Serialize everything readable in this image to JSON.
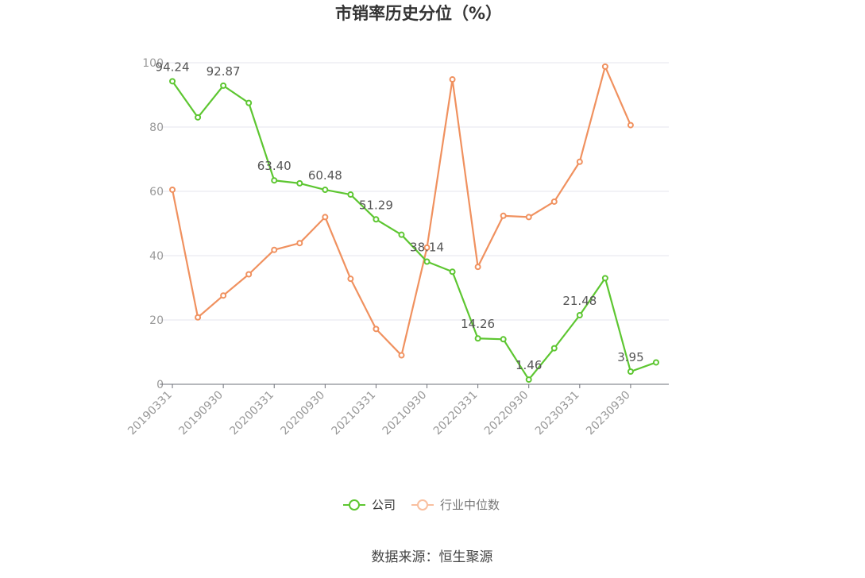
{
  "chart_data": {
    "type": "line",
    "title": "市销率历史分位（%）",
    "source": "数据来源：恒生聚源",
    "ylim": [
      0,
      100
    ],
    "y_ticks": [
      "0",
      "20",
      "40",
      "60",
      "80",
      "100"
    ],
    "categories": [
      "20190331",
      "20190630",
      "20190930",
      "20191231",
      "20200331",
      "20200630",
      "20200930",
      "20201231",
      "20210331",
      "20210630",
      "20210930",
      "20211231",
      "20220331",
      "20220630",
      "20220930",
      "20221231",
      "20230331",
      "20230630",
      "20230930",
      "20231231"
    ],
    "x_tick_labels": [
      "20190331",
      "20190930",
      "20200331",
      "20200930",
      "20210331",
      "20210930",
      "20220331",
      "20220930",
      "20230331",
      "20230930"
    ],
    "grid": true,
    "legend_position": "bottom",
    "series": [
      {
        "name": "公司",
        "color": "#5dc631",
        "values": [
          94.24,
          83.0,
          92.87,
          87.5,
          63.4,
          62.5,
          60.48,
          59.0,
          51.29,
          46.5,
          38.14,
          35.0,
          14.26,
          14.0,
          1.46,
          11.2,
          21.48,
          33.0,
          3.95,
          6.8
        ],
        "labels": [
          "94.24",
          null,
          "92.87",
          null,
          "63.40",
          null,
          "60.48",
          null,
          "51.29",
          null,
          "38.14",
          null,
          "14.26",
          null,
          "1.46",
          null,
          "21.48",
          null,
          "3.95",
          null
        ]
      },
      {
        "name": "行业中位数",
        "color": "#f0915f",
        "values": [
          60.5,
          20.8,
          27.6,
          34.2,
          41.8,
          43.9,
          52.0,
          32.8,
          17.2,
          9.0,
          42.5,
          94.8,
          36.5,
          52.4,
          52.0,
          56.8,
          69.2,
          98.8,
          80.6,
          null
        ]
      }
    ]
  }
}
